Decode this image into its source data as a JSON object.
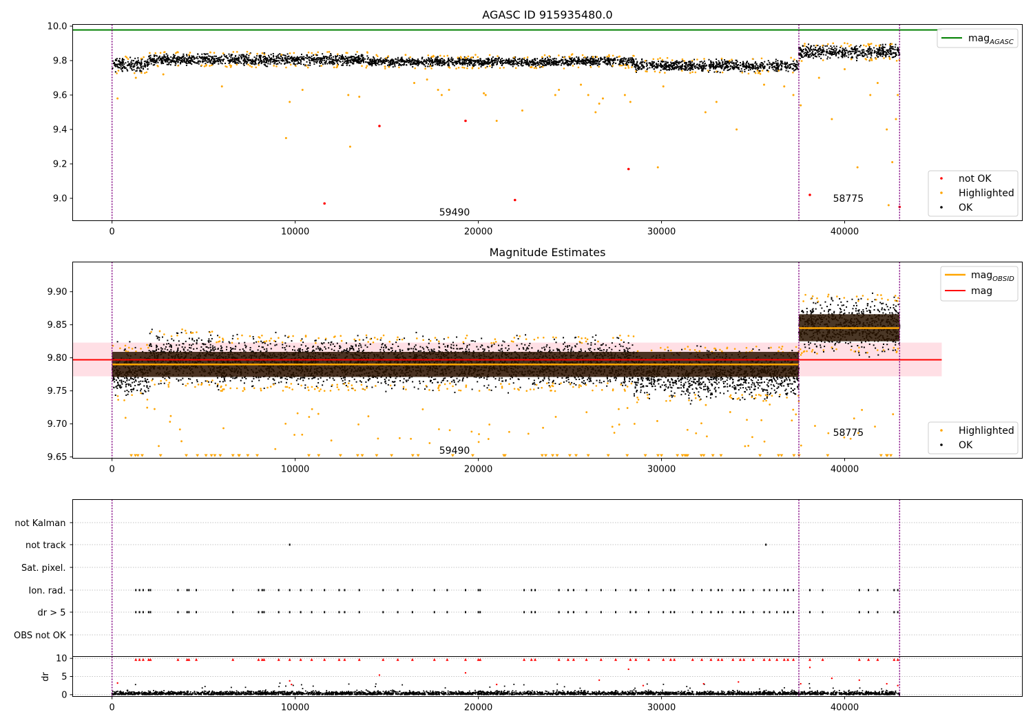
{
  "chart_data": [
    {
      "type": "scatter",
      "title": "AGASC ID 915935480.0",
      "xlim": [
        -2150,
        49700
      ],
      "ylim": [
        8.87,
        10.01
      ],
      "x_ticks": [
        "0",
        "10000",
        "20000",
        "30000",
        "40000"
      ],
      "x_tick_values": [
        0,
        10000,
        20000,
        30000,
        40000
      ],
      "y_ticks": [
        "9.0",
        "9.2",
        "9.4",
        "9.6",
        "9.8",
        "10.0"
      ],
      "y_tick_values": [
        9.0,
        9.2,
        9.4,
        9.6,
        9.8,
        10.0
      ],
      "vlines": [
        0,
        37500,
        43000
      ],
      "mag_agasc": 9.978,
      "ok_bands": [
        {
          "x": [
            0,
            2000
          ],
          "center": 9.775,
          "spread": 0.03
        },
        {
          "x": [
            2000,
            14000
          ],
          "center": 9.805,
          "spread": 0.025
        },
        {
          "x": [
            14000,
            25000
          ],
          "center": 9.792,
          "spread": 0.02
        },
        {
          "x": [
            25000,
            28500
          ],
          "center": 9.797,
          "spread": 0.02
        },
        {
          "x": [
            28500,
            37500
          ],
          "center": 9.77,
          "spread": 0.025
        },
        {
          "x": [
            37500,
            43000
          ],
          "center": 9.85,
          "spread": 0.03
        }
      ],
      "not_ok_points": [
        [
          11600,
          8.97
        ],
        [
          14600,
          9.42
        ],
        [
          19300,
          9.45
        ],
        [
          22000,
          8.99
        ],
        [
          28200,
          9.17
        ],
        [
          38100,
          9.02
        ],
        [
          43000,
          8.95
        ]
      ],
      "highlighted_points": [
        [
          300,
          9.58
        ],
        [
          1300,
          9.7
        ],
        [
          2800,
          9.72
        ],
        [
          6000,
          9.65
        ],
        [
          9500,
          9.35
        ],
        [
          9700,
          9.56
        ],
        [
          10400,
          9.63
        ],
        [
          12900,
          9.6
        ],
        [
          13000,
          9.3
        ],
        [
          13500,
          9.59
        ],
        [
          16500,
          9.67
        ],
        [
          17200,
          9.69
        ],
        [
          17800,
          9.63
        ],
        [
          18000,
          9.6
        ],
        [
          18400,
          9.63
        ],
        [
          20300,
          9.61
        ],
        [
          20400,
          9.6
        ],
        [
          21000,
          9.45
        ],
        [
          22400,
          9.51
        ],
        [
          24200,
          9.6
        ],
        [
          24400,
          9.63
        ],
        [
          25600,
          9.66
        ],
        [
          26000,
          9.6
        ],
        [
          26400,
          9.5
        ],
        [
          26600,
          9.55
        ],
        [
          26800,
          9.58
        ],
        [
          28000,
          9.6
        ],
        [
          28300,
          9.56
        ],
        [
          29800,
          9.18
        ],
        [
          30100,
          9.65
        ],
        [
          32400,
          9.5
        ],
        [
          33000,
          9.56
        ],
        [
          34100,
          9.4
        ],
        [
          35600,
          9.66
        ],
        [
          36700,
          9.65
        ],
        [
          37200,
          9.6
        ],
        [
          37600,
          9.54
        ],
        [
          38600,
          9.7
        ],
        [
          39300,
          9.46
        ],
        [
          40000,
          9.75
        ],
        [
          40700,
          9.18
        ],
        [
          41400,
          9.6
        ],
        [
          41800,
          9.67
        ],
        [
          42300,
          9.4
        ],
        [
          42600,
          9.21
        ],
        [
          42800,
          9.46
        ],
        [
          42900,
          9.6
        ],
        [
          42400,
          8.96
        ]
      ],
      "annotations": [
        {
          "x": 18700,
          "y": 8.9,
          "text": "59490"
        },
        {
          "x": 40200,
          "y": 8.98,
          "text": "58775"
        }
      ],
      "legend_upper": [
        "mag_AGASC"
      ],
      "legend_lower": [
        "not OK",
        "Highlighted",
        "OK"
      ]
    },
    {
      "type": "scatter",
      "title": "Magnitude Estimates",
      "xlim": [
        -2150,
        49700
      ],
      "ylim": [
        9.648,
        9.945
      ],
      "x_ticks": [
        "0",
        "10000",
        "20000",
        "30000",
        "40000"
      ],
      "x_tick_values": [
        0,
        10000,
        20000,
        30000,
        40000
      ],
      "y_ticks": [
        "9.65",
        "9.70",
        "9.75",
        "9.80",
        "9.85",
        "9.90"
      ],
      "y_tick_values": [
        9.65,
        9.7,
        9.75,
        9.8,
        9.85,
        9.9
      ],
      "vlines": [
        0,
        37500,
        43000
      ],
      "mag": 9.797,
      "mag_band": [
        9.772,
        9.823
      ],
      "mag_obsid_segments": [
        {
          "x": [
            0,
            37500
          ],
          "y": 9.79,
          "band": [
            9.771,
            9.809
          ]
        },
        {
          "x": [
            37500,
            43000
          ],
          "y": 9.845,
          "band": [
            9.825,
            9.866
          ]
        }
      ],
      "annotations": [
        {
          "x": 18700,
          "y": 9.655,
          "text": "59490"
        },
        {
          "x": 40200,
          "y": 9.682,
          "text": "58775"
        }
      ],
      "legend_upper": [
        "mag_OBSID",
        "mag"
      ],
      "legend_lower": [
        "Highlighted",
        "OK"
      ]
    },
    {
      "type": "scatter",
      "title": "",
      "xlim": [
        -2150,
        49700
      ],
      "x_ticks": [
        "0",
        "10000",
        "20000",
        "30000",
        "40000"
      ],
      "x_tick_values": [
        0,
        10000,
        20000,
        30000,
        40000
      ],
      "flag_rows": [
        "not Kalman",
        "not track",
        "Sat. pixel.",
        "Ion. rad.",
        "dr > 5",
        "OBS not OK"
      ],
      "flag_points": {
        "not track": [
          9700,
          35700
        ],
        "Ion. rad.": [
          1300,
          1500,
          1700,
          2000,
          2100,
          3600,
          4100,
          4200,
          4600,
          6600,
          8000,
          8200,
          8300,
          9100,
          9700,
          10300,
          10900,
          11600,
          12400,
          12700,
          13500,
          14800,
          15600,
          16400,
          17600,
          18300,
          19300,
          20000,
          20100,
          22500,
          22900,
          23100,
          24400,
          24900,
          25200,
          25900,
          26700,
          27500,
          28300,
          28600,
          29300,
          30100,
          30500,
          30700,
          31700,
          32200,
          32700,
          33100,
          33300,
          33900,
          34300,
          34500,
          35000,
          35600,
          35900,
          36300,
          36700,
          36900,
          37200,
          38100,
          38800,
          40800,
          41300,
          41800,
          42700,
          42900
        ],
        "dr > 5": [
          1300,
          1500,
          1700,
          2000,
          2100,
          3600,
          4100,
          4200,
          4600,
          6600,
          8000,
          8200,
          8300,
          9100,
          9700,
          10300,
          10900,
          11600,
          12400,
          12700,
          13500,
          14800,
          15600,
          16400,
          17600,
          18300,
          19300,
          20000,
          20100,
          22500,
          22900,
          23100,
          24400,
          24900,
          25200,
          25900,
          26700,
          27500,
          28300,
          28600,
          29300,
          30100,
          30500,
          30700,
          31700,
          32200,
          32700,
          33100,
          33300,
          33900,
          34300,
          34500,
          35000,
          35600,
          35900,
          36300,
          36700,
          36900,
          37200,
          38100,
          38800,
          40800,
          41300,
          41800,
          42700,
          42900
        ]
      },
      "dr_ylabel": "dr",
      "dr_ylim": [
        -0.5,
        10.5
      ],
      "dr_y_ticks": [
        "0",
        "5",
        "10"
      ],
      "dr_y_tick_values": [
        0,
        5,
        10
      ],
      "dr_red_points": [
        [
          300,
          3.2
        ],
        [
          9700,
          3.8
        ],
        [
          9800,
          2.8
        ],
        [
          14600,
          5.4
        ],
        [
          19300,
          6.0
        ],
        [
          21000,
          2.8
        ],
        [
          26600,
          4.0
        ],
        [
          28200,
          7.0
        ],
        [
          29000,
          2.5
        ],
        [
          32300,
          3.0
        ],
        [
          34200,
          3.5
        ],
        [
          37600,
          3.0
        ],
        [
          38100,
          7.5
        ],
        [
          39300,
          4.5
        ],
        [
          40800,
          4.0
        ],
        [
          42300,
          3.0
        ],
        [
          42900,
          2.5
        ]
      ],
      "vlines": [
        0,
        37500,
        43000
      ]
    }
  ],
  "legend_labels": {
    "mag_agasc_main": "mag",
    "mag_agasc_sub": "AGASC",
    "mag_obsid_main": "mag",
    "mag_obsid_sub": "OBSID",
    "mag": "mag",
    "not_ok": "not OK",
    "highlighted": "Highlighted",
    "ok": "OK"
  },
  "colors": {
    "ok": "#000000",
    "highlighted": "#ffa500",
    "not_ok": "#ff0000",
    "mag_agasc": "#008000",
    "mag": "#ff0000",
    "mag_obsid": "#ffa500",
    "vline": "#800080",
    "mag_band": "#ffc0cb",
    "obsid_band": "#2a1400",
    "grid": "#b0b0b0"
  }
}
